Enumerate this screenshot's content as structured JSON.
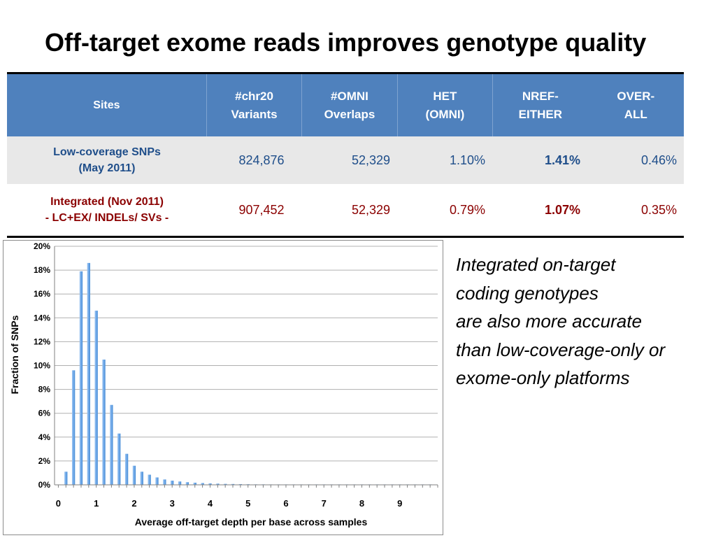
{
  "title": "Off-target exome reads improves genotype quality",
  "table": {
    "headers": [
      [
        "Sites"
      ],
      [
        "#chr20",
        "Variants"
      ],
      [
        "#OMNI",
        "Overlaps"
      ],
      [
        "HET",
        "(OMNI)"
      ],
      [
        "NREF-",
        "EITHER"
      ],
      [
        "OVER-",
        "ALL"
      ]
    ],
    "rows": [
      {
        "label": [
          "Low-coverage SNPs",
          "(May 2011)"
        ],
        "values": [
          "824,876",
          "52,329",
          "1.10%",
          "1.41%",
          "0.46%"
        ]
      },
      {
        "label": [
          "Integrated (Nov 2011)",
          "- LC+EX/ INDELs/ SVs -"
        ],
        "values": [
          "907,452",
          "52,329",
          "0.79%",
          "1.07%",
          "0.35%"
        ]
      }
    ]
  },
  "caption": [
    "Integrated on-target",
    "coding genotypes",
    "are also more accurate",
    "than low-coverage-only or",
    "exome-only platforms"
  ],
  "chart_data": {
    "type": "bar",
    "title": "",
    "xlabel": "Average off-target depth per base across samples",
    "ylabel": "Fraction of SNPs",
    "x_ticks": [
      "0",
      "1",
      "2",
      "3",
      "4",
      "5",
      "6",
      "7",
      "8",
      "9"
    ],
    "y_ticks": [
      "0%",
      "2%",
      "4%",
      "6%",
      "8%",
      "10%",
      "12%",
      "14%",
      "16%",
      "18%",
      "20%"
    ],
    "xlim": [
      -0.1,
      10
    ],
    "ylim": [
      0,
      20
    ],
    "grid": true,
    "bar_color": "#6fa8e8",
    "x": [
      0.2,
      0.4,
      0.6,
      0.8,
      1.0,
      1.2,
      1.4,
      1.6,
      1.8,
      2.0,
      2.2,
      2.4,
      2.6,
      2.8,
      3.0,
      3.2,
      3.4,
      3.6,
      3.8,
      4.0,
      4.2,
      4.4,
      4.6,
      4.8,
      5.0,
      5.2,
      5.4,
      5.6,
      5.8,
      6.0,
      6.2,
      6.4,
      6.6,
      6.8,
      7.0,
      7.2,
      7.4,
      7.6,
      7.8,
      8.0,
      8.2,
      8.4,
      8.6,
      8.8,
      9.0,
      9.2,
      9.4,
      9.6,
      9.8
    ],
    "values": [
      1.1,
      9.6,
      17.9,
      18.6,
      14.6,
      10.5,
      6.7,
      4.3,
      2.6,
      1.6,
      1.1,
      0.85,
      0.62,
      0.45,
      0.35,
      0.28,
      0.22,
      0.18,
      0.15,
      0.12,
      0.1,
      0.08,
      0.07,
      0.06,
      0.05,
      0.04,
      0.04,
      0.03,
      0.03,
      0.03,
      0.02,
      0.02,
      0.02,
      0.02,
      0.02,
      0.02,
      0.01,
      0.01,
      0.01,
      0.01,
      0.01,
      0.01,
      0.01,
      0.01,
      0.01,
      0.01,
      0.01,
      0.01,
      0.01
    ]
  }
}
